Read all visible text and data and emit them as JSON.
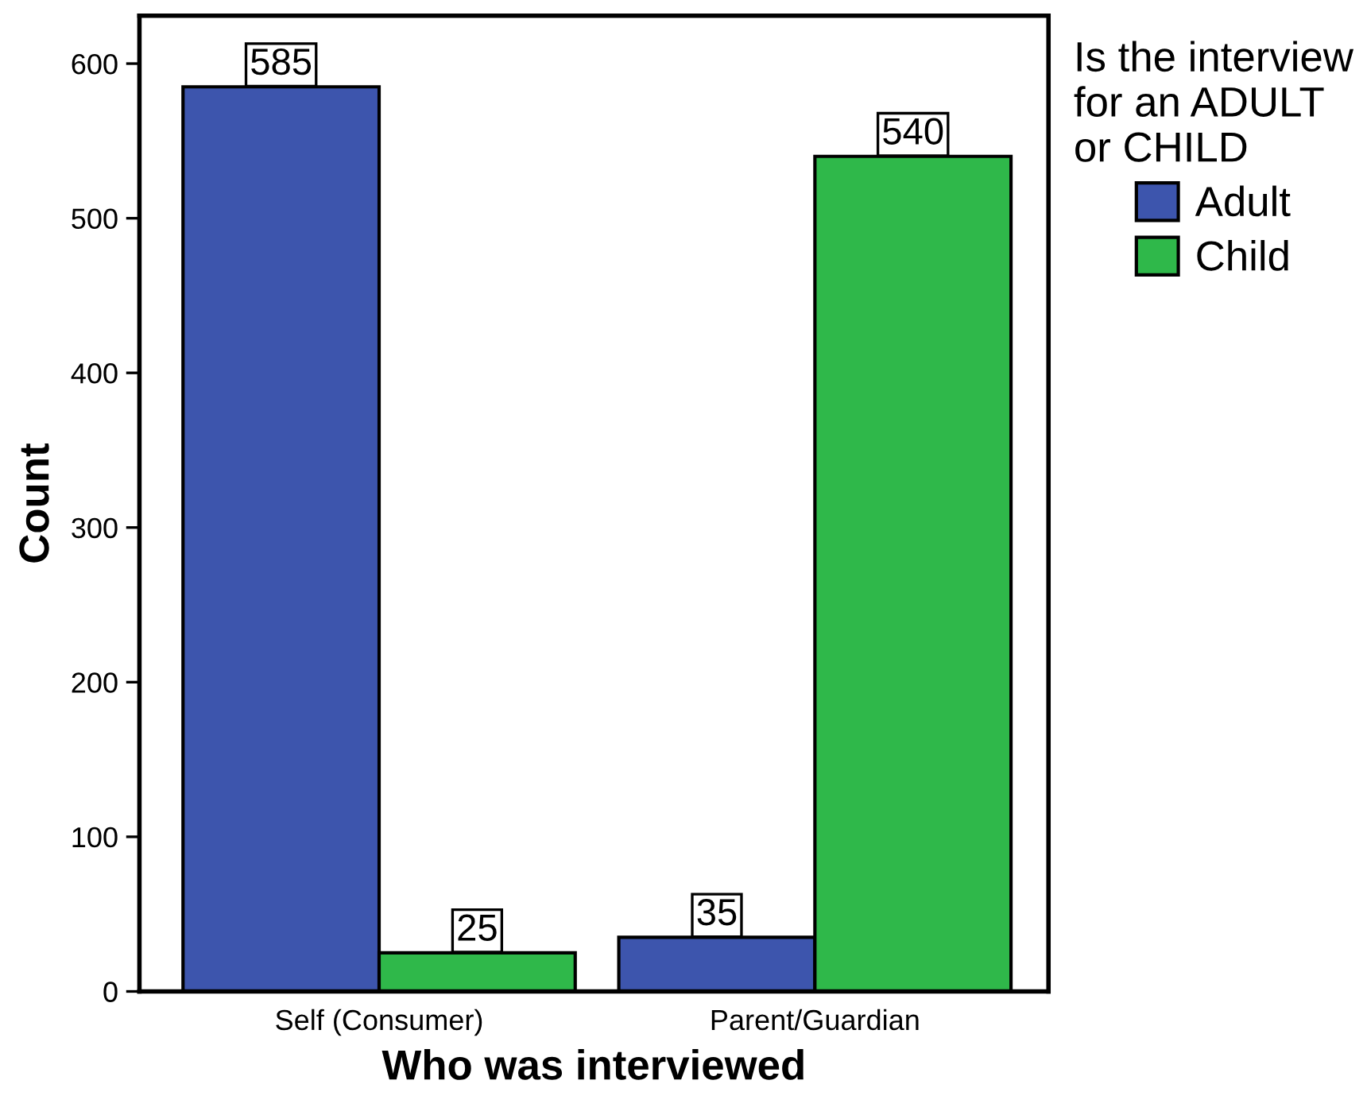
{
  "chart_data": {
    "type": "bar",
    "xlabel": "Who was interviewed",
    "ylabel": "Count",
    "legend_title": "Is the interview\nfor an ADULT\nor CHILD",
    "categories": [
      "Self (Consumer)",
      "Parent/Guardian"
    ],
    "series": [
      {
        "name": "Adult",
        "color": "#3d55ad",
        "values": [
          585,
          35
        ]
      },
      {
        "name": "Child",
        "color": "#2fb84a",
        "values": [
          25,
          540
        ]
      }
    ],
    "ylim": [
      0,
      631
    ],
    "yticks": [
      0,
      100,
      200,
      300,
      400,
      500,
      600
    ],
    "grid": false,
    "legend": "right",
    "data_labels": true
  }
}
